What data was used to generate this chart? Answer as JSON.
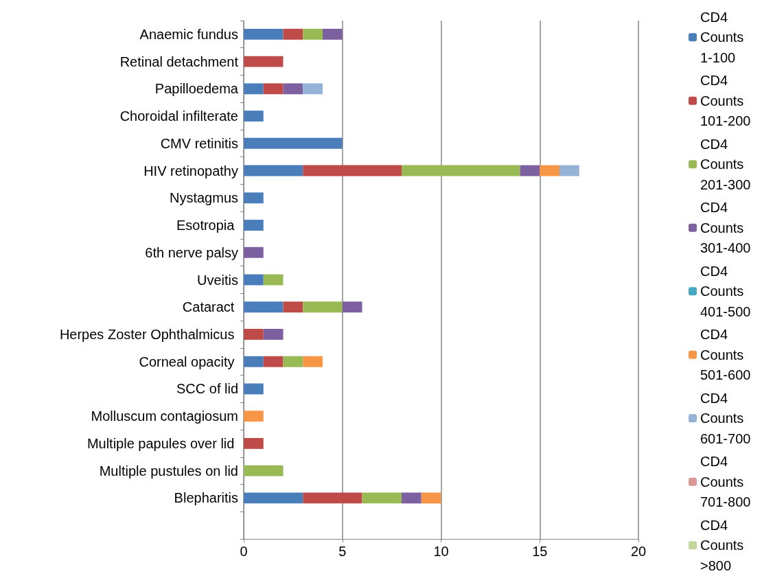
{
  "chart_data": {
    "type": "bar",
    "orientation": "horizontal",
    "stacked": true,
    "categories": [
      "Anaemic fundus",
      "Retinal detachment",
      "Papilloedema",
      "Choroidal infilterate",
      "CMV retinitis",
      "HIV retinopathy",
      "Nystagmus",
      "Esotropia ",
      "6th nerve palsy",
      "Uveitis",
      "Cataract ",
      "Herpes Zoster Ophthalmicus ",
      "Corneal opacity ",
      "SCC of lid",
      "Molluscum contagiosum",
      "Multiple papules over lid ",
      "Multiple pustules on lid",
      "Blepharitis",
      null
    ],
    "series": [
      {
        "name": "CD4 Counts 1-100",
        "color": "#4a7ebb",
        "values": [
          2,
          null,
          1,
          1,
          5,
          3,
          1,
          1,
          null,
          1,
          2,
          null,
          1,
          1,
          null,
          null,
          null,
          3,
          null
        ]
      },
      {
        "name": "CD4 Counts 101-200",
        "color": "#be4b48",
        "values": [
          1,
          2,
          1,
          null,
          null,
          5,
          null,
          null,
          null,
          null,
          1,
          1,
          1,
          null,
          null,
          1,
          null,
          3,
          null
        ]
      },
      {
        "name": "CD4 Counts 201-300",
        "color": "#98b954",
        "values": [
          1,
          null,
          null,
          null,
          null,
          6,
          null,
          null,
          null,
          1,
          2,
          null,
          1,
          null,
          null,
          null,
          2,
          2,
          null
        ]
      },
      {
        "name": "CD4 Counts 301-400",
        "color": "#7d60a0",
        "values": [
          1,
          null,
          1,
          null,
          null,
          1,
          null,
          null,
          1,
          null,
          1,
          1,
          null,
          null,
          null,
          null,
          null,
          1,
          null
        ]
      },
      {
        "name": "CD4 Counts 401-500",
        "color": "#46aac5",
        "values": [
          null,
          null,
          null,
          null,
          null,
          null,
          null,
          null,
          null,
          null,
          null,
          null,
          null,
          null,
          null,
          null,
          null,
          null,
          null
        ]
      },
      {
        "name": "CD4 Counts 501-600",
        "color": "#f79646",
        "values": [
          null,
          null,
          null,
          null,
          null,
          1,
          null,
          null,
          null,
          null,
          null,
          null,
          1,
          null,
          1,
          null,
          null,
          1,
          null
        ]
      },
      {
        "name": "CD4 Counts 601-700",
        "color": "#95b3d7",
        "values": [
          null,
          null,
          1,
          null,
          null,
          1,
          null,
          null,
          null,
          null,
          null,
          null,
          null,
          null,
          null,
          null,
          null,
          null,
          null
        ]
      },
      {
        "name": "CD4 Counts 701-800",
        "color": "#d99795",
        "values": [
          null,
          null,
          null,
          null,
          null,
          null,
          null,
          null,
          null,
          null,
          null,
          null,
          null,
          null,
          null,
          null,
          null,
          null,
          null
        ]
      },
      {
        "name": "CD4 Counts >800",
        "color": "#c3d69b",
        "values": [
          null,
          null,
          null,
          null,
          null,
          null,
          null,
          null,
          null,
          null,
          null,
          null,
          null,
          null,
          null,
          null,
          null,
          null,
          null
        ]
      }
    ],
    "xlim": [
      0,
      20
    ],
    "xticks": [
      0,
      5,
      10,
      15,
      20
    ],
    "grid": "x",
    "legend": "right"
  }
}
